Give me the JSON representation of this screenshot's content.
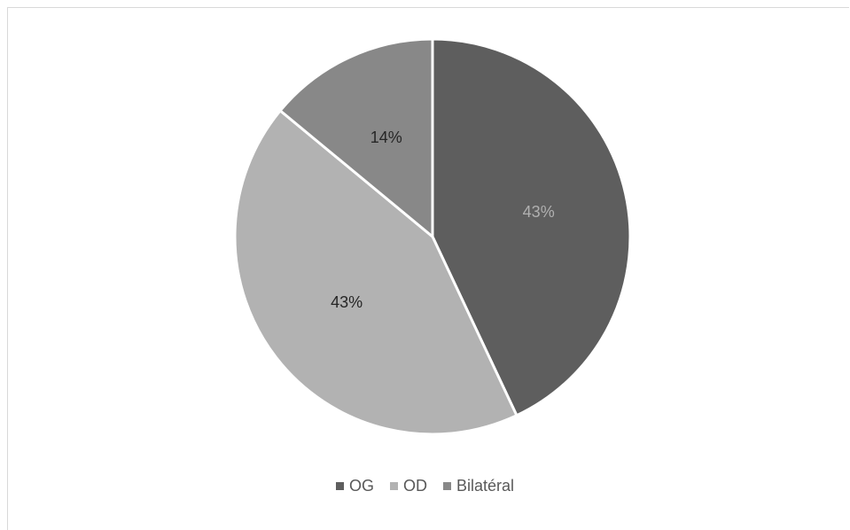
{
  "chart_data": {
    "type": "pie",
    "title": "",
    "categories": [
      "OG",
      "OD",
      "Bilatéral"
    ],
    "values": [
      43,
      43,
      14
    ],
    "labels": [
      "43%",
      "43%",
      "14%"
    ],
    "colors": [
      "#5e5e5e",
      "#b2b2b2",
      "#888888"
    ],
    "label_colors": [
      "#b0b0b0",
      "#262626",
      "#262626"
    ],
    "start": "top",
    "direction": "clockwise",
    "legend_position": "bottom"
  },
  "legend": {
    "items": [
      {
        "label": "OG",
        "color": "#5e5e5e"
      },
      {
        "label": "OD",
        "color": "#b2b2b2"
      },
      {
        "label": "Bilatéral",
        "color": "#888888"
      }
    ]
  }
}
